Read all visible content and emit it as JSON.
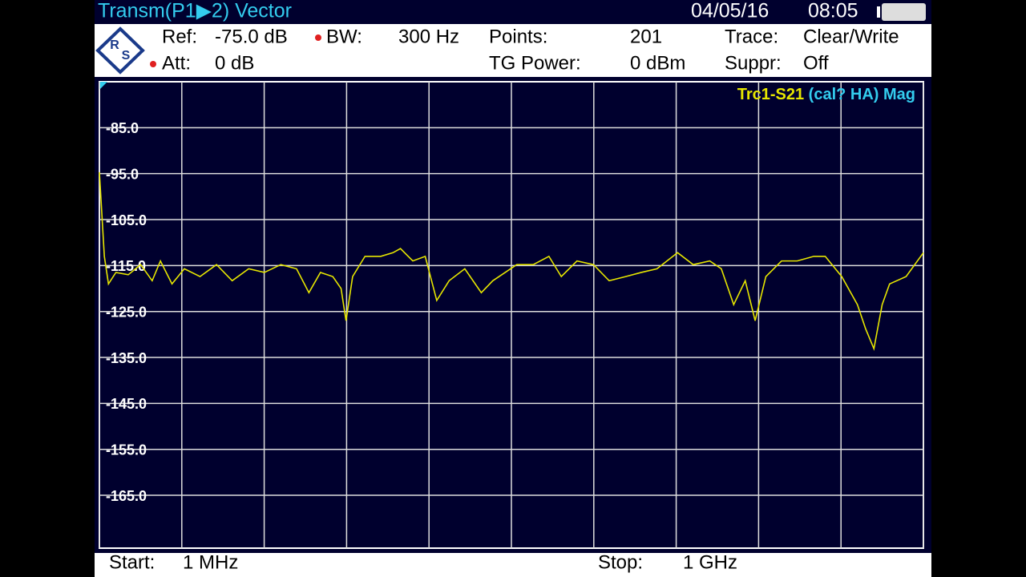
{
  "header": {
    "title": "Transm(P1▶2) Vector",
    "date": "04/05/16",
    "time": "08:05",
    "logo": [
      "R",
      "S"
    ],
    "settings": [
      {
        "label": "Ref:",
        "value": "-75.0 dB"
      },
      {
        "label": "BW:",
        "value": "300 Hz"
      },
      {
        "label": "Points:",
        "value": "201"
      },
      {
        "label": "Trace:",
        "value": "Clear/Write"
      },
      {
        "label": "Att:",
        "value": "0 dB"
      },
      {
        "label": "TG Power:",
        "value": "0 dBm"
      },
      {
        "label": "Suppr:",
        "value": "Off"
      }
    ]
  },
  "footer": {
    "start_label": "Start:",
    "start": "1 MHz",
    "stop_label": "Stop:",
    "stop": "1 GHz"
  },
  "chart_data": {
    "type": "line",
    "trace_label": "Trc1-S21",
    "trace_info": "(cal? HA) Mag",
    "x": [
      1,
      7,
      12,
      21,
      36,
      51,
      65,
      75,
      89,
      104,
      123,
      143,
      162,
      182,
      201,
      221,
      240,
      255,
      269,
      284,
      294,
      300,
      308,
      323,
      342,
      357,
      366,
      381,
      396,
      410,
      425,
      444,
      464,
      478,
      493,
      507,
      527,
      546,
      561,
      580,
      600,
      619,
      639,
      658,
      677,
      702,
      721,
      741,
      755,
      770,
      784,
      796,
      809,
      828,
      847,
      867,
      881,
      901,
      920,
      930,
      940,
      950,
      959,
      979,
      1000
    ],
    "series": [
      {
        "name": "Trc1-S21",
        "color": "#e6e600",
        "values": [
          -94.7,
          -113,
          -119,
          -116.5,
          -117,
          -114.8,
          -118.3,
          -114,
          -119,
          -115.7,
          -117.4,
          -114.8,
          -118.3,
          -115.7,
          -116.5,
          -114.8,
          -115.7,
          -120.9,
          -116.5,
          -117.4,
          -120,
          -127,
          -117.4,
          -113,
          -113,
          -112.2,
          -111.3,
          -114,
          -113,
          -122.6,
          -118.3,
          -115.7,
          -120.9,
          -118.3,
          -116.5,
          -114.8,
          -114.8,
          -113,
          -117.4,
          -114,
          -114.8,
          -118.3,
          -117.4,
          -116.5,
          -115.7,
          -112.2,
          -114.8,
          -114,
          -115.7,
          -123.5,
          -118.3,
          -127,
          -117.4,
          -114,
          -114,
          -113,
          -113,
          -117.4,
          -123.5,
          -128.8,
          -133.1,
          -123.5,
          -119,
          -117.4,
          -112.2
        ]
      }
    ],
    "xlim": [
      1,
      1000
    ],
    "xticks": [
      1,
      100.9,
      200.8,
      300.7,
      400.6,
      500.5,
      600.4,
      700.3,
      800.2,
      900.1,
      1000
    ],
    "ylim": [
      -176.5,
      -75
    ],
    "yticks": [
      {
        "value": -85,
        "label": "-85.0"
      },
      {
        "value": -95,
        "label": "-95.0"
      },
      {
        "value": -105,
        "label": "-105.0"
      },
      {
        "value": -115,
        "label": "-115.0"
      },
      {
        "value": -125,
        "label": "-125.0"
      },
      {
        "value": -135,
        "label": "-135.0"
      },
      {
        "value": -145,
        "label": "-145.0"
      },
      {
        "value": -155,
        "label": "-155.0"
      },
      {
        "value": -165,
        "label": "-165.0"
      }
    ],
    "grid": true
  }
}
